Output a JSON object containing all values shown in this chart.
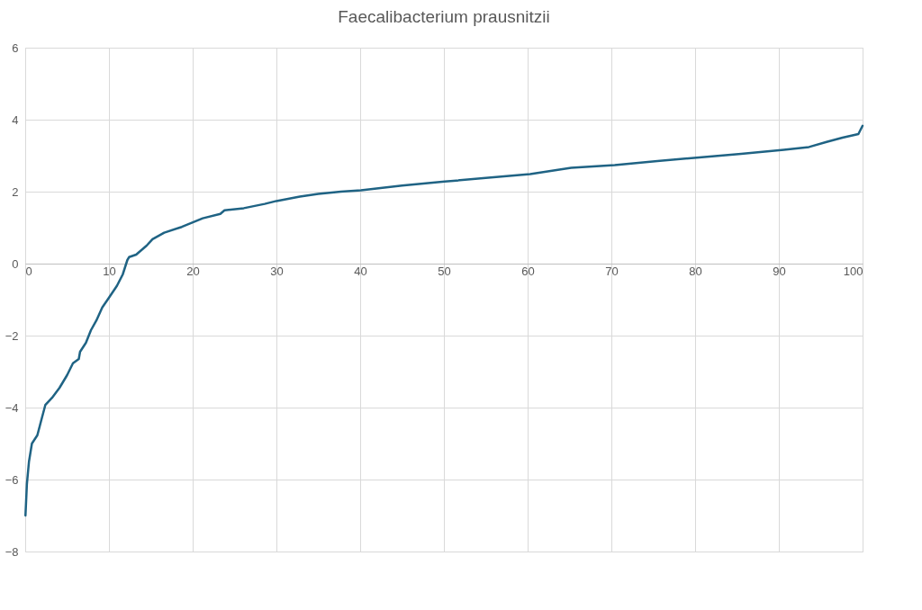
{
  "chart_data": {
    "type": "line",
    "title": "Faecalibacterium prausnitzii",
    "x": [
      0.03,
      0.2,
      0.45,
      0.8,
      1.45,
      1.9,
      2.4,
      3.2,
      4.1,
      5.0,
      5.7,
      6.4,
      6.55,
      7.25,
      7.85,
      8.5,
      9.2,
      9.9,
      10.95,
      11.65,
      12.2,
      12.4,
      13.25,
      14.5,
      15.2,
      16.6,
      18.7,
      19.95,
      21.2,
      23.3,
      23.8,
      26.1,
      28.6,
      30.0,
      32.8,
      35.0,
      37.7,
      40.1,
      45.0,
      50.1,
      55.0,
      60.3,
      65.2,
      70.4,
      75.5,
      80.5,
      85.5,
      90.6,
      93.6,
      95.7,
      97.6,
      99.5,
      100
    ],
    "series": [
      {
        "color": "#1f6384",
        "values": [
          -7.0,
          -6.13,
          -5.5,
          -5.0,
          -4.77,
          -4.37,
          -3.93,
          -3.73,
          -3.45,
          -3.1,
          -2.77,
          -2.65,
          -2.45,
          -2.2,
          -1.85,
          -1.58,
          -1.22,
          -0.98,
          -0.62,
          -0.3,
          0.1,
          0.18,
          0.25,
          0.5,
          0.68,
          0.86,
          1.02,
          1.14,
          1.26,
          1.38,
          1.48,
          1.54,
          1.66,
          1.74,
          1.86,
          1.94,
          2.0,
          2.04,
          2.17,
          2.28,
          2.38,
          2.49,
          2.66,
          2.74,
          2.85,
          2.95,
          3.05,
          3.16,
          3.24,
          3.38,
          3.5,
          3.6,
          3.83
        ]
      }
    ],
    "xlim": [
      0,
      100
    ],
    "xticks": [
      0,
      10,
      20,
      30,
      40,
      50,
      60,
      70,
      80,
      90,
      100
    ],
    "ylim": [
      -8,
      6
    ],
    "yticks": [
      -8,
      -6,
      -4,
      -2,
      0,
      2,
      4,
      6
    ],
    "grid": true,
    "marker": "none",
    "line_style": "solid"
  }
}
